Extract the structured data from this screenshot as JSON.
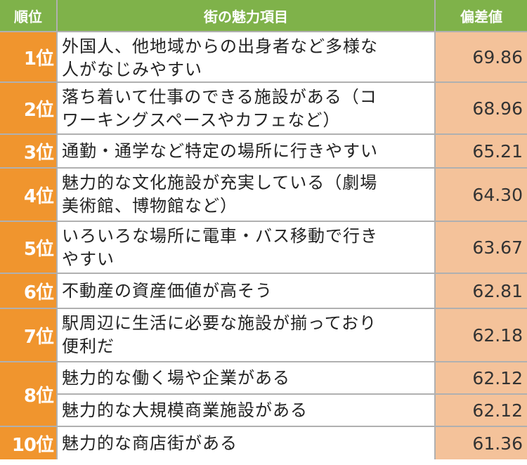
{
  "header": {
    "rank": "順位",
    "item": "街の魅力項目",
    "score": "偏差値"
  },
  "rows": [
    {
      "rank": "1位",
      "lines": [
        "外国人、他地域からの出身者など多様な",
        "人がなじみやすい"
      ],
      "score": "69.86"
    },
    {
      "rank": "2位",
      "lines": [
        "落ち着いて仕事のできる施設がある（コ",
        "ワーキングスペースやカフェなど）"
      ],
      "score": "68.96"
    },
    {
      "rank": "3位",
      "lines": [
        "通勤・通学など特定の場所に行きやすい"
      ],
      "score": "65.21"
    },
    {
      "rank": "4位",
      "lines": [
        "魅力的な文化施設が充実している（劇場",
        "美術館、博物館など）"
      ],
      "score": "64.30"
    },
    {
      "rank": "5位",
      "lines": [
        "いろいろな場所に電車・バス移動で行き",
        "やすい"
      ],
      "score": "63.67"
    },
    {
      "rank": "6位",
      "lines": [
        "不動産の資産価値が高そう"
      ],
      "score": "62.81"
    },
    {
      "rank": "7位",
      "lines": [
        "駅周辺に生活に必要な施設が揃っており",
        "便利だ"
      ],
      "score": "62.18"
    },
    {
      "rank": "8位",
      "lines": [
        "魅力的な働く場や企業がある"
      ],
      "score": "62.12"
    },
    {
      "rank": "8位",
      "lines": [
        "魅力的な大規模商業施設がある"
      ],
      "score": "62.12"
    },
    {
      "rank": "10位",
      "lines": [
        "魅力的な商店街がある"
      ],
      "score": "61.36"
    }
  ]
}
